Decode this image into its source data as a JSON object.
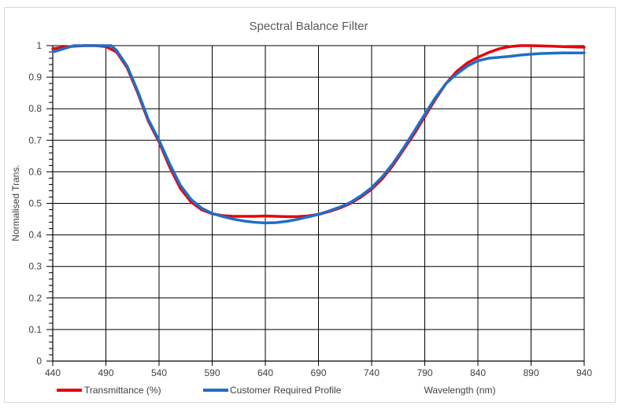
{
  "chart_data": {
    "type": "line",
    "title": "Spectral Balance Filter",
    "xlabel": "Wavelength (nm)",
    "ylabel": "Normalised Trans.",
    "xlim": [
      440,
      940
    ],
    "ylim": [
      0,
      1
    ],
    "x_ticks": [
      "440",
      "490",
      "540",
      "590",
      "640",
      "690",
      "740",
      "790",
      "840",
      "890",
      "940"
    ],
    "y_ticks": [
      "0",
      "0.1",
      "0.2",
      "0.3",
      "0.4",
      "0.5",
      "0.6",
      "0.7",
      "0.8",
      "0.9",
      "1"
    ],
    "grid": true,
    "legend_position": "bottom-left",
    "series": [
      {
        "name": "Transmittance (%)",
        "color": "#e8000b",
        "points": [
          [
            440,
            0.99
          ],
          [
            450,
            0.995
          ],
          [
            460,
            0.998
          ],
          [
            470,
            1.0
          ],
          [
            480,
            1.0
          ],
          [
            490,
            0.997
          ],
          [
            500,
            0.98
          ],
          [
            510,
            0.93
          ],
          [
            520,
            0.85
          ],
          [
            530,
            0.76
          ],
          [
            540,
            0.695
          ],
          [
            550,
            0.615
          ],
          [
            560,
            0.548
          ],
          [
            570,
            0.505
          ],
          [
            580,
            0.48
          ],
          [
            590,
            0.467
          ],
          [
            600,
            0.461
          ],
          [
            610,
            0.459
          ],
          [
            620,
            0.459
          ],
          [
            630,
            0.459
          ],
          [
            640,
            0.46
          ],
          [
            650,
            0.459
          ],
          [
            660,
            0.458
          ],
          [
            670,
            0.458
          ],
          [
            680,
            0.46
          ],
          [
            690,
            0.465
          ],
          [
            700,
            0.474
          ],
          [
            710,
            0.485
          ],
          [
            720,
            0.5
          ],
          [
            730,
            0.52
          ],
          [
            740,
            0.545
          ],
          [
            750,
            0.578
          ],
          [
            760,
            0.62
          ],
          [
            770,
            0.67
          ],
          [
            780,
            0.72
          ],
          [
            790,
            0.775
          ],
          [
            800,
            0.83
          ],
          [
            810,
            0.88
          ],
          [
            820,
            0.918
          ],
          [
            830,
            0.945
          ],
          [
            840,
            0.963
          ],
          [
            850,
            0.978
          ],
          [
            860,
            0.99
          ],
          [
            870,
            0.997
          ],
          [
            880,
            1.0
          ],
          [
            890,
            1.0
          ],
          [
            900,
            0.999
          ],
          [
            910,
            0.998
          ],
          [
            920,
            0.997
          ],
          [
            930,
            0.996
          ],
          [
            940,
            0.995
          ]
        ]
      },
      {
        "name": "Customer Required Profile",
        "color": "#1f6fc5",
        "points": [
          [
            440,
            0.98
          ],
          [
            450,
            0.99
          ],
          [
            460,
            1.0
          ],
          [
            470,
            1.0
          ],
          [
            480,
            1.0
          ],
          [
            490,
            1.0
          ],
          [
            495,
            1.0
          ],
          [
            500,
            0.985
          ],
          [
            510,
            0.935
          ],
          [
            520,
            0.855
          ],
          [
            530,
            0.765
          ],
          [
            540,
            0.7
          ],
          [
            550,
            0.625
          ],
          [
            560,
            0.558
          ],
          [
            570,
            0.513
          ],
          [
            580,
            0.485
          ],
          [
            590,
            0.468
          ],
          [
            600,
            0.458
          ],
          [
            610,
            0.45
          ],
          [
            620,
            0.444
          ],
          [
            630,
            0.44
          ],
          [
            640,
            0.438
          ],
          [
            650,
            0.439
          ],
          [
            660,
            0.443
          ],
          [
            670,
            0.449
          ],
          [
            680,
            0.457
          ],
          [
            690,
            0.465
          ],
          [
            700,
            0.476
          ],
          [
            710,
            0.488
          ],
          [
            720,
            0.503
          ],
          [
            730,
            0.524
          ],
          [
            740,
            0.55
          ],
          [
            750,
            0.584
          ],
          [
            760,
            0.626
          ],
          [
            770,
            0.675
          ],
          [
            780,
            0.728
          ],
          [
            790,
            0.782
          ],
          [
            800,
            0.835
          ],
          [
            810,
            0.88
          ],
          [
            820,
            0.91
          ],
          [
            830,
            0.935
          ],
          [
            840,
            0.952
          ],
          [
            850,
            0.96
          ],
          [
            860,
            0.963
          ],
          [
            870,
            0.966
          ],
          [
            880,
            0.97
          ],
          [
            890,
            0.973
          ],
          [
            900,
            0.975
          ],
          [
            910,
            0.976
          ],
          [
            920,
            0.977
          ],
          [
            930,
            0.977
          ],
          [
            940,
            0.977
          ]
        ]
      }
    ]
  }
}
